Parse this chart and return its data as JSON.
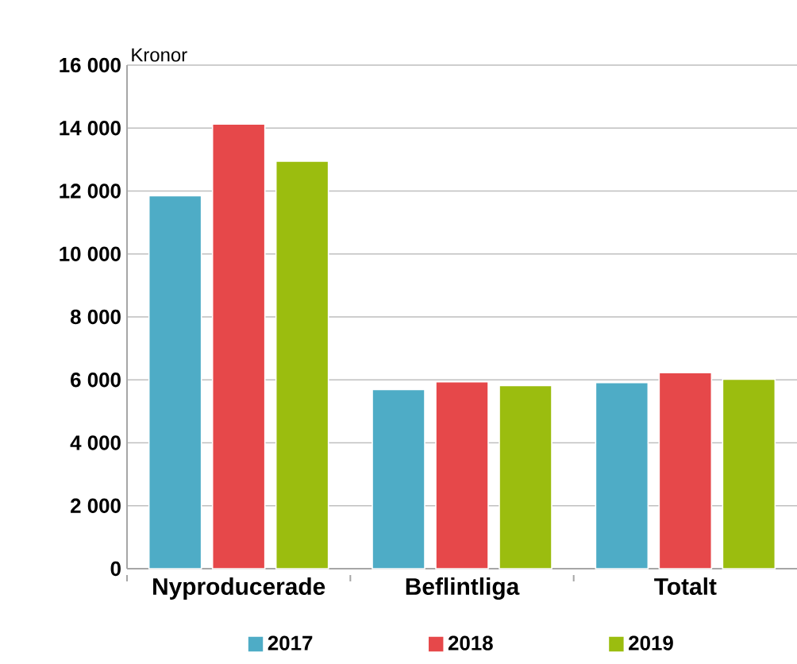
{
  "chart_data": {
    "type": "bar",
    "ylabel": "Kronor",
    "categories": [
      "Nyproducerade",
      "Beflintliga",
      "Totalt"
    ],
    "series": [
      {
        "name": "2017",
        "color": "#4eacc6",
        "values": [
          11850,
          5690,
          5910
        ]
      },
      {
        "name": "2018",
        "color": "#e6484a",
        "values": [
          14130,
          5940,
          6230
        ]
      },
      {
        "name": "2019",
        "color": "#9bbd0f",
        "values": [
          12950,
          5820,
          6020
        ]
      }
    ],
    "ylim": [
      0,
      16000
    ],
    "yticks": [
      0,
      {
        "value": 2000,
        "label": "2 000"
      },
      {
        "value": 4000,
        "label": "4 000"
      },
      {
        "value": 6000,
        "label": "6 000"
      },
      {
        "value": 8000,
        "label": "8 000"
      },
      {
        "value": 10000,
        "label": "10 000"
      },
      {
        "value": 12000,
        "label": "12 000"
      },
      {
        "value": 14000,
        "label": "14 000"
      },
      {
        "value": 16000,
        "label": "16 000"
      }
    ],
    "grid": "y",
    "legend": "bottom"
  }
}
